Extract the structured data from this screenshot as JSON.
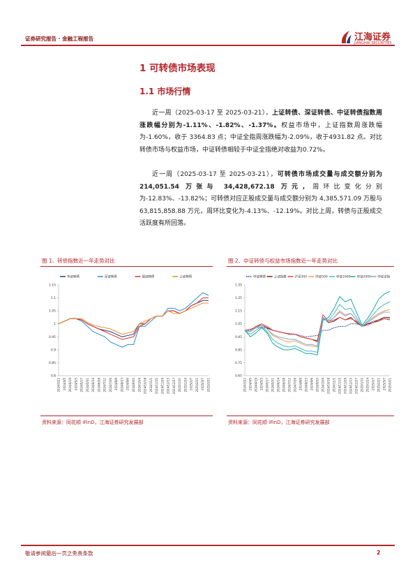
{
  "header": {
    "title": "证券研究报告 · 金融工程报告",
    "logo": "江海证券",
    "logo_en": "JIANGHAI SECURITIES"
  },
  "section": {
    "title": "1 可转债市场表现",
    "subsection": "1.1 市场行情"
  },
  "paragraphs": [
    {
      "lead": "近一周（2025-03-17 至 2025-03-21），",
      "bold": "上证转债、深证转债、中证转债指数周涨跌幅分别为-1.11%、-1.82%、-1.37%。",
      "rest": "权益市场中，上证指数周涨跌幅为-1.60%，收于 3364.83 点；中证全指周涨跌幅为-2.09%，收于4931.82 点。对比转债市场与权益市场，中证转债相较于中证全指绝对收益为0.72%。"
    },
    {
      "lead": "近一周（2025-03-17 至 2025-03-21），",
      "bold": "可转债市场成交量与成交额分别为 214,051.54 万张与 34,428,672.18 万元，",
      "rest": "周环比变化分别为-12.83%、-13.82%；可转债对应正股成交量与成交额分别为 4,385,571.09 万股与63,815,858.88 万元，周环比变化为-4.13%、-12.19%。对比上周，转债与正股成交活跃度有所回落。"
    }
  ],
  "footer": {
    "disclaimer": "敬请参阅最后一页之免责条款",
    "page": "2"
  },
  "chart_data": [
    {
      "type": "line",
      "title": "图 1、转债指数近一年走势对比",
      "source": "资料来源：同花顺 iFinD，江海证券研究发展部",
      "categories": [
        "2024/3/22",
        "2024/4/5",
        "2024/4/19",
        "2024/5/3",
        "2024/5/17",
        "2024/5/31",
        "2024/6/14",
        "2024/6/28",
        "2024/7/12",
        "2024/7/26",
        "2024/8/9",
        "2024/8/23",
        "2024/9/6",
        "2024/9/20",
        "2024/10/4",
        "2024/10/18",
        "2024/11/1",
        "2024/11/15",
        "2024/11/29",
        "2024/12/13",
        "2024/12/27",
        "2025/1/10",
        "2025/1/24",
        "2025/2/7",
        "2025/2/21",
        "2025/3/7",
        "2025/3/21"
      ],
      "ylim": [
        0.8,
        1.15
      ],
      "yticks": [
        0.8,
        0.85,
        0.9,
        0.95,
        1,
        1.05,
        1.1,
        1.15
      ],
      "grid": false,
      "series": [
        {
          "name": "中证转债",
          "color": "#1f3d7a",
          "values": [
            1,
            1.01,
            1.02,
            1.02,
            1.015,
            1.0,
            0.99,
            0.98,
            0.975,
            0.97,
            0.96,
            0.95,
            0.955,
            0.96,
            1.0,
            1.0,
            1.02,
            1.03,
            1.03,
            1.05,
            1.05,
            1.04,
            1.05,
            1.07,
            1.08,
            1.09,
            1.09
          ]
        },
        {
          "name": "深证转债",
          "color": "#2b8fd6",
          "values": [
            1,
            1.01,
            1.02,
            1.02,
            1.01,
            0.99,
            0.97,
            0.96,
            0.95,
            0.93,
            0.92,
            0.91,
            0.92,
            0.92,
            0.99,
            0.99,
            1.01,
            1.03,
            1.03,
            1.06,
            1.06,
            1.05,
            1.06,
            1.08,
            1.1,
            1.12,
            1.11
          ]
        },
        {
          "name": "国证转债",
          "color": "#d9322f",
          "values": [
            1,
            1.01,
            1.02,
            1.02,
            1.015,
            1.0,
            0.99,
            0.98,
            0.97,
            0.96,
            0.95,
            0.94,
            0.945,
            0.95,
            0.99,
            1.0,
            1.02,
            1.03,
            1.03,
            1.05,
            1.05,
            1.04,
            1.05,
            1.07,
            1.08,
            1.1,
            1.1
          ]
        },
        {
          "name": "上证转债",
          "color": "#f08c2b",
          "values": [
            1,
            1.01,
            1.02,
            1.02,
            1.02,
            1.005,
            0.995,
            0.99,
            0.985,
            0.98,
            0.97,
            0.96,
            0.965,
            0.97,
            1.0,
            1.01,
            1.02,
            1.03,
            1.03,
            1.05,
            1.04,
            1.04,
            1.05,
            1.06,
            1.07,
            1.08,
            1.08
          ]
        }
      ]
    },
    {
      "type": "line",
      "title": "图 2、中证转债与权益市场指数近一年走势对比",
      "source": "资料来源：同花顺 iFinD，江海证券研究发展部",
      "categories": [
        "2024/3/22",
        "2024/4/5",
        "2024/4/19",
        "2024/5/3",
        "2024/5/17",
        "2024/5/31",
        "2024/6/14",
        "2024/6/28",
        "2024/7/12",
        "2024/7/26",
        "2024/8/9",
        "2024/8/23",
        "2024/9/6",
        "2024/9/20",
        "2024/10/4",
        "2024/10/18",
        "2024/11/1",
        "2024/11/15",
        "2024/11/29",
        "2024/12/13",
        "2024/12/27",
        "2025/1/10",
        "2025/1/24",
        "2025/2/7",
        "2025/2/21",
        "2025/3/7",
        "2025/3/21"
      ],
      "ylim": [
        0.65,
        1.35
      ],
      "yticks": [
        0.65,
        0.75,
        0.85,
        0.95,
        1.05,
        1.15,
        1.25,
        1.35
      ],
      "grid": false,
      "series": [
        {
          "name": "中证转债",
          "color": "#1f3d7a",
          "dashed": true,
          "values": [
            1,
            1.01,
            1.02,
            1.02,
            1.015,
            1.0,
            0.99,
            0.98,
            0.975,
            0.97,
            0.96,
            0.95,
            0.955,
            0.96,
            1.0,
            1.0,
            1.02,
            1.03,
            1.03,
            1.05,
            1.05,
            1.04,
            1.05,
            1.07,
            1.08,
            1.09,
            1.09
          ]
        },
        {
          "name": "上证指数",
          "color": "#7b1f1f",
          "values": [
            1,
            1.0,
            1.03,
            1.04,
            1.02,
            1.0,
            0.99,
            0.98,
            0.97,
            0.97,
            0.95,
            0.94,
            0.93,
            0.92,
            1.1,
            1.06,
            1.07,
            1.1,
            1.08,
            1.1,
            1.06,
            1.03,
            1.05,
            1.06,
            1.08,
            1.1,
            1.1
          ]
        },
        {
          "name": "沪深300",
          "color": "#e0463c",
          "values": [
            1,
            1.0,
            1.03,
            1.05,
            1.03,
            1.0,
            0.99,
            0.98,
            0.97,
            0.97,
            0.95,
            0.94,
            0.93,
            0.91,
            1.12,
            1.07,
            1.08,
            1.1,
            1.08,
            1.09,
            1.07,
            1.03,
            1.04,
            1.06,
            1.07,
            1.09,
            1.08
          ]
        },
        {
          "name": "中证500",
          "color": "#f0a050",
          "values": [
            1,
            0.99,
            1.02,
            1.04,
            1.01,
            0.96,
            0.94,
            0.92,
            0.91,
            0.92,
            0.9,
            0.88,
            0.88,
            0.87,
            1.09,
            1.07,
            1.1,
            1.15,
            1.12,
            1.13,
            1.08,
            1.03,
            1.06,
            1.1,
            1.13,
            1.15,
            1.16
          ]
        },
        {
          "name": "中证1000",
          "color": "#46b8c8",
          "values": [
            1,
            0.97,
            1.0,
            1.03,
            0.99,
            0.93,
            0.9,
            0.88,
            0.87,
            0.88,
            0.86,
            0.84,
            0.84,
            0.83,
            1.08,
            1.08,
            1.13,
            1.2,
            1.16,
            1.17,
            1.1,
            1.03,
            1.07,
            1.12,
            1.17,
            1.2,
            1.22
          ]
        },
        {
          "name": "中证2000",
          "color": "#1aa89a",
          "values": [
            1,
            0.95,
            0.98,
            1.02,
            0.98,
            0.9,
            0.87,
            0.85,
            0.85,
            0.86,
            0.84,
            0.82,
            0.82,
            0.81,
            1.08,
            1.1,
            1.17,
            1.26,
            1.22,
            1.24,
            1.14,
            1.04,
            1.09,
            1.16,
            1.24,
            1.28,
            1.3
          ]
        },
        {
          "name": "中证全指",
          "color": "#7fa7d9",
          "values": [
            1,
            0.99,
            1.02,
            1.04,
            1.01,
            0.97,
            0.95,
            0.94,
            0.93,
            0.93,
            0.91,
            0.89,
            0.89,
            0.88,
            1.1,
            1.07,
            1.1,
            1.14,
            1.11,
            1.13,
            1.08,
            1.03,
            1.06,
            1.09,
            1.12,
            1.14,
            1.14
          ]
        }
      ]
    }
  ]
}
